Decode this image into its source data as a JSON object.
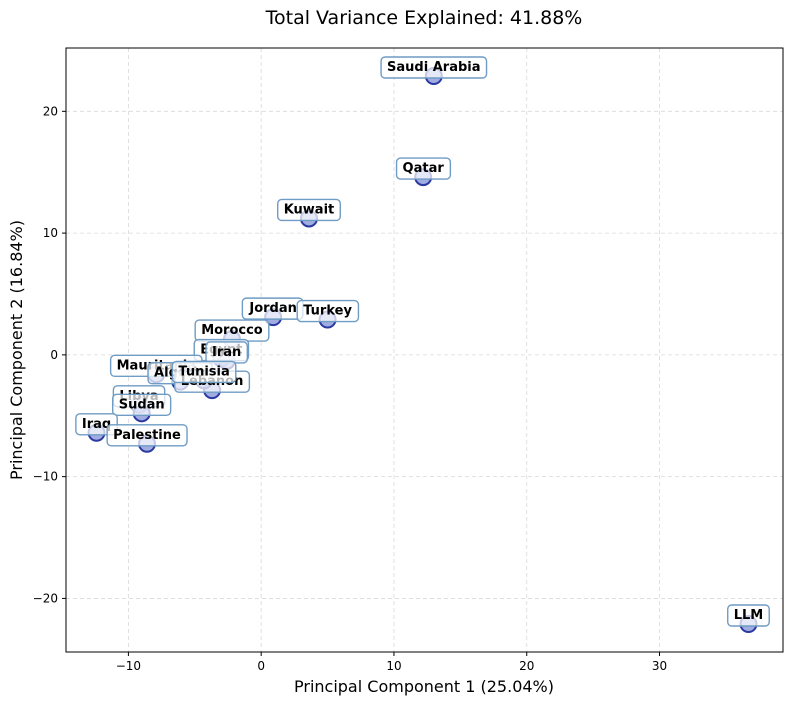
{
  "chart_data": {
    "type": "scatter",
    "title": "Total Variance Explained: 41.88%",
    "xlabel": "Principal Component 1 (25.04%)",
    "ylabel": "Principal Component 2 (16.84%)",
    "xlim": [
      -14.7,
      39.3
    ],
    "ylim": [
      -24.4,
      25.2
    ],
    "xticks": [
      -10,
      0,
      10,
      20,
      30
    ],
    "yticks": [
      -20,
      -10,
      0,
      10,
      20
    ],
    "xtick_labels": [
      "−10",
      "0",
      "10",
      "20",
      "30"
    ],
    "ytick_labels": [
      "−20",
      "−10",
      "0",
      "10",
      "20"
    ],
    "grid": true,
    "colors": {
      "point_fill": "#8090d8",
      "point_edge": "#2a3aa0",
      "label_border": "#6f9cc4"
    },
    "points": [
      {
        "label": "Saudi Arabia",
        "x": 13.0,
        "y": 22.9
      },
      {
        "label": "Qatar",
        "x": 12.2,
        "y": 14.6
      },
      {
        "label": "Kuwait",
        "x": 3.6,
        "y": 11.2
      },
      {
        "label": "Jordan",
        "x": 0.9,
        "y": 3.1
      },
      {
        "label": "Turkey",
        "x": 5.0,
        "y": 2.9
      },
      {
        "label": "Morocco",
        "x": -2.2,
        "y": 1.3
      },
      {
        "label": "Egypt",
        "x": -3.0,
        "y": -0.3
      },
      {
        "label": "Iran",
        "x": -2.6,
        "y": -0.5
      },
      {
        "label": "Mauritania",
        "x": -7.9,
        "y": -1.6
      },
      {
        "label": "Algeria",
        "x": -6.1,
        "y": -2.2
      },
      {
        "label": "Lebanon",
        "x": -3.7,
        "y": -2.9
      },
      {
        "label": "Tunisia",
        "x": -4.3,
        "y": -2.1
      },
      {
        "label": "Libya",
        "x": -9.2,
        "y": -4.1
      },
      {
        "label": "Sudan",
        "x": -9.0,
        "y": -4.8
      },
      {
        "label": "Iraq",
        "x": -12.4,
        "y": -6.4
      },
      {
        "label": "Palestine",
        "x": -8.6,
        "y": -7.3
      },
      {
        "label": "LLM",
        "x": 36.7,
        "y": -22.1
      }
    ]
  }
}
